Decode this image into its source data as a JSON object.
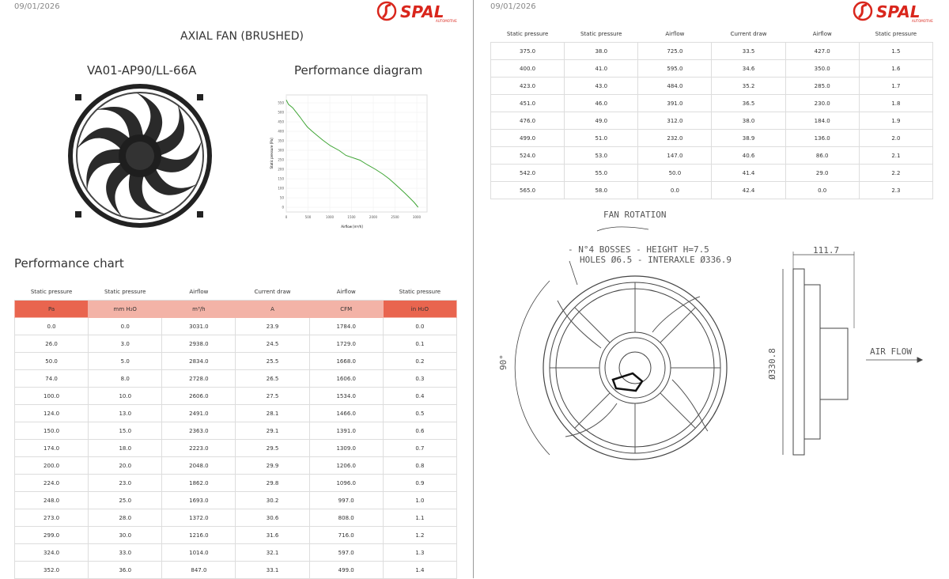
{
  "pages": [
    {
      "date": "09/01/2026",
      "logo": {
        "brand": "SPAL",
        "tagline": "AUTOMOTIVE"
      },
      "title": "AXIAL FAN (BRUSHED)",
      "model": "VA01-AP90/LL-66A",
      "diagram": {
        "title": "Performance diagram",
        "y_label": "Static pressure [Pa]",
        "x_label": "Airflow [m³/h]",
        "xlim": [
          0,
          3000
        ],
        "ylim": [
          0,
          550
        ],
        "xticks": [
          0,
          500,
          1000,
          1500,
          2000,
          2500,
          3000
        ],
        "yticks": [
          0,
          50,
          100,
          150,
          200,
          250,
          300,
          350,
          400,
          450,
          500,
          550
        ]
      },
      "chart_title": "Performance chart",
      "table": {
        "header": [
          "Static pressure",
          "Static pressure",
          "Airflow",
          "Current draw",
          "Airflow",
          "Static pressure"
        ],
        "units": [
          "Pa",
          "mm H₂O",
          "m³/h",
          "A",
          "CFM",
          "in H₂O"
        ],
        "rows": [
          [
            "0.0",
            "0.0",
            "3031.0",
            "23.9",
            "1784.0",
            "0.0"
          ],
          [
            "26.0",
            "3.0",
            "2938.0",
            "24.5",
            "1729.0",
            "0.1"
          ],
          [
            "50.0",
            "5.0",
            "2834.0",
            "25.5",
            "1668.0",
            "0.2"
          ],
          [
            "74.0",
            "8.0",
            "2728.0",
            "26.5",
            "1606.0",
            "0.3"
          ],
          [
            "100.0",
            "10.0",
            "2606.0",
            "27.5",
            "1534.0",
            "0.4"
          ],
          [
            "124.0",
            "13.0",
            "2491.0",
            "28.1",
            "1466.0",
            "0.5"
          ],
          [
            "150.0",
            "15.0",
            "2363.0",
            "29.1",
            "1391.0",
            "0.6"
          ],
          [
            "174.0",
            "18.0",
            "2223.0",
            "29.5",
            "1309.0",
            "0.7"
          ],
          [
            "200.0",
            "20.0",
            "2048.0",
            "29.9",
            "1206.0",
            "0.8"
          ],
          [
            "224.0",
            "23.0",
            "1862.0",
            "29.8",
            "1096.0",
            "0.9"
          ],
          [
            "248.0",
            "25.0",
            "1693.0",
            "30.2",
            "997.0",
            "1.0"
          ],
          [
            "273.0",
            "28.0",
            "1372.0",
            "30.6",
            "808.0",
            "1.1"
          ],
          [
            "299.0",
            "30.0",
            "1216.0",
            "31.6",
            "716.0",
            "1.2"
          ],
          [
            "324.0",
            "33.0",
            "1014.0",
            "32.1",
            "597.0",
            "1.3"
          ],
          [
            "352.0",
            "36.0",
            "847.0",
            "33.1",
            "499.0",
            "1.4"
          ]
        ]
      }
    },
    {
      "date": "09/01/2026",
      "logo": {
        "brand": "SPAL",
        "tagline": "AUTOMOTIVE"
      },
      "table": {
        "header": [
          "Static pressure",
          "Static pressure",
          "Airflow",
          "Current draw",
          "Airflow",
          "Static pressure"
        ],
        "rows": [
          [
            "375.0",
            "38.0",
            "725.0",
            "33.5",
            "427.0",
            "1.5"
          ],
          [
            "400.0",
            "41.0",
            "595.0",
            "34.6",
            "350.0",
            "1.6"
          ],
          [
            "423.0",
            "43.0",
            "484.0",
            "35.2",
            "285.0",
            "1.7"
          ],
          [
            "451.0",
            "46.0",
            "391.0",
            "36.5",
            "230.0",
            "1.8"
          ],
          [
            "476.0",
            "49.0",
            "312.0",
            "38.0",
            "184.0",
            "1.9"
          ],
          [
            "499.0",
            "51.0",
            "232.0",
            "38.9",
            "136.0",
            "2.0"
          ],
          [
            "524.0",
            "53.0",
            "147.0",
            "40.6",
            "86.0",
            "2.1"
          ],
          [
            "542.0",
            "55.0",
            "50.0",
            "41.4",
            "29.0",
            "2.2"
          ],
          [
            "565.0",
            "58.0",
            "0.0",
            "42.4",
            "0.0",
            "2.3"
          ]
        ]
      },
      "drawing": {
        "rotation": "FAN ROTATION",
        "bosses": "- N°4 BOSSES - HEIGHT H=7.5",
        "holes": "HOLES Ø6.5 - INTERAXLE Ø336.9",
        "depth": "111.7",
        "angle": "90°",
        "diameter": "Ø330.8",
        "airflow": "AIR FLOW"
      }
    }
  ]
}
